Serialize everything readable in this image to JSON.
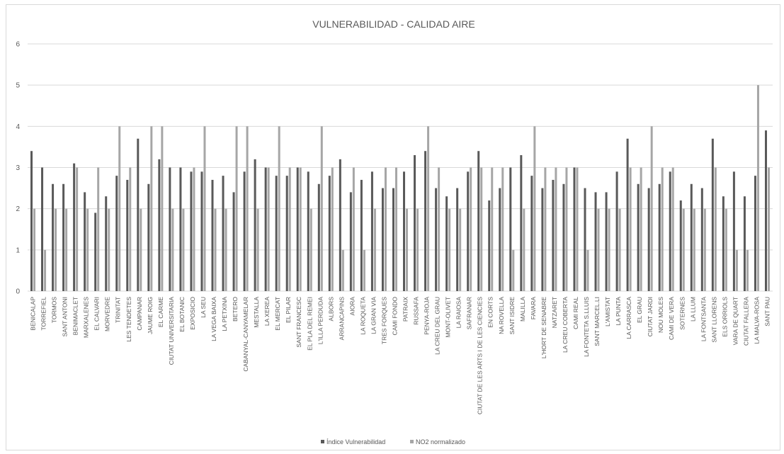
{
  "chart_data": {
    "type": "bar",
    "title": "VULNERABILIDAD - CALIDAD AIRE",
    "xlabel": "",
    "ylabel": "",
    "ylim": [
      0,
      6
    ],
    "yticks": [
      0,
      1,
      2,
      3,
      4,
      5,
      6
    ],
    "grid": true,
    "legend_position": "bottom",
    "colors": {
      "vulnerabilidad": "#595959",
      "no2": "#a6a6a6",
      "grid": "#d9d9d9"
    },
    "categories": [
      "BENICALAP",
      "TORREFIEL",
      "TORMOS",
      "SANT ANTONI",
      "BENIMACLET",
      "MARXALENES",
      "EL CALVARI",
      "MORVEDRE",
      "TRINITAT",
      "LES TENDETES",
      "CAMPANAR",
      "JAUME ROIG",
      "EL CARME",
      "CIUTAT UNIVERSITARIA",
      "EL BOTANIC",
      "EXPOSICIO",
      "LA SEU",
      "LA VEGA BAIXA",
      "LA PETXINA",
      "BETERO",
      "CABANYAL-CANYAMELAR",
      "MESTALLA",
      "LA XEREA",
      "EL MERCAT",
      "EL PILAR",
      "SANT FRANCESC",
      "EL PLA DEL REMEI",
      "L'ILLA PERDUDA",
      "ALBORS",
      "ARRANCAPINS",
      "AIORA",
      "LA ROQUETA",
      "LA GRAN VIA",
      "TRES FORQUES",
      "CAMI FONDO",
      "PATRAIX",
      "RUSSAFA",
      "PENYA-ROJA",
      "LA CREU DEL GRAU",
      "MONT-OLIVET",
      "LA RAIOSA",
      "SAFRANAR",
      "CIUTAT DE LES ARTS I DE LES CIENCIES",
      "EN CORTS",
      "NA ROVELLA",
      "SANT ISIDRE",
      "MALILLA",
      "FAVARA",
      "L'HORT DE SENABRE",
      "NATZARET",
      "LA CREU COBERTA",
      "CAMI REAL",
      "LA FONTETA S.LLUIS",
      "SANT MARCEL.LI",
      "L'AMISTAT",
      "LA PUNTA",
      "LA CARRASCA",
      "EL GRAU",
      "CIUTAT JARDI",
      "NOU MOLES",
      "CAMI DE VERA",
      "SOTERNES",
      "LA LLUM",
      "LA FONTSANTA",
      "SANT LLORENS",
      "ELS ORRIOLS",
      "VARA DE QUART",
      "CIUTAT FALLERA",
      "LA MALVA-ROSA",
      "SANT PAU"
    ],
    "series": [
      {
        "name": "Índice Vulnerabilidad",
        "values": [
          3.4,
          3.0,
          2.6,
          2.6,
          3.1,
          2.4,
          1.9,
          2.3,
          2.8,
          2.7,
          3.7,
          2.6,
          3.2,
          3.0,
          3.0,
          2.9,
          2.9,
          2.7,
          2.8,
          2.4,
          2.9,
          3.2,
          3.0,
          2.8,
          2.8,
          3.0,
          2.9,
          2.6,
          2.8,
          3.2,
          2.4,
          2.7,
          2.9,
          2.5,
          2.5,
          2.9,
          3.3,
          3.4,
          2.5,
          2.3,
          2.5,
          2.9,
          3.4,
          2.2,
          2.5,
          3.0,
          3.3,
          2.8,
          2.5,
          2.7,
          2.6,
          3.0,
          2.5,
          2.4,
          2.4,
          2.9,
          3.7,
          2.6,
          2.5,
          2.6,
          2.9,
          2.2,
          2.6,
          2.5,
          3.7,
          2.3,
          2.9,
          2.3,
          2.8,
          3.9
        ]
      },
      {
        "name": "NO2 normalizado",
        "values": [
          2,
          1,
          2,
          2,
          3,
          2,
          3,
          2,
          4,
          3,
          2,
          4,
          4,
          2,
          2,
          3,
          4,
          2,
          2,
          4,
          4,
          2,
          3,
          4,
          3,
          3,
          2,
          4,
          3,
          1,
          3,
          1,
          2,
          3,
          3,
          2,
          2,
          4,
          3,
          2,
          2,
          3,
          3,
          3,
          3,
          1,
          2,
          4,
          3,
          3,
          3,
          3,
          1,
          2,
          2,
          2,
          3,
          3,
          4,
          3,
          3,
          2,
          2,
          2,
          3,
          2,
          1,
          1,
          5,
          3
        ]
      }
    ]
  }
}
